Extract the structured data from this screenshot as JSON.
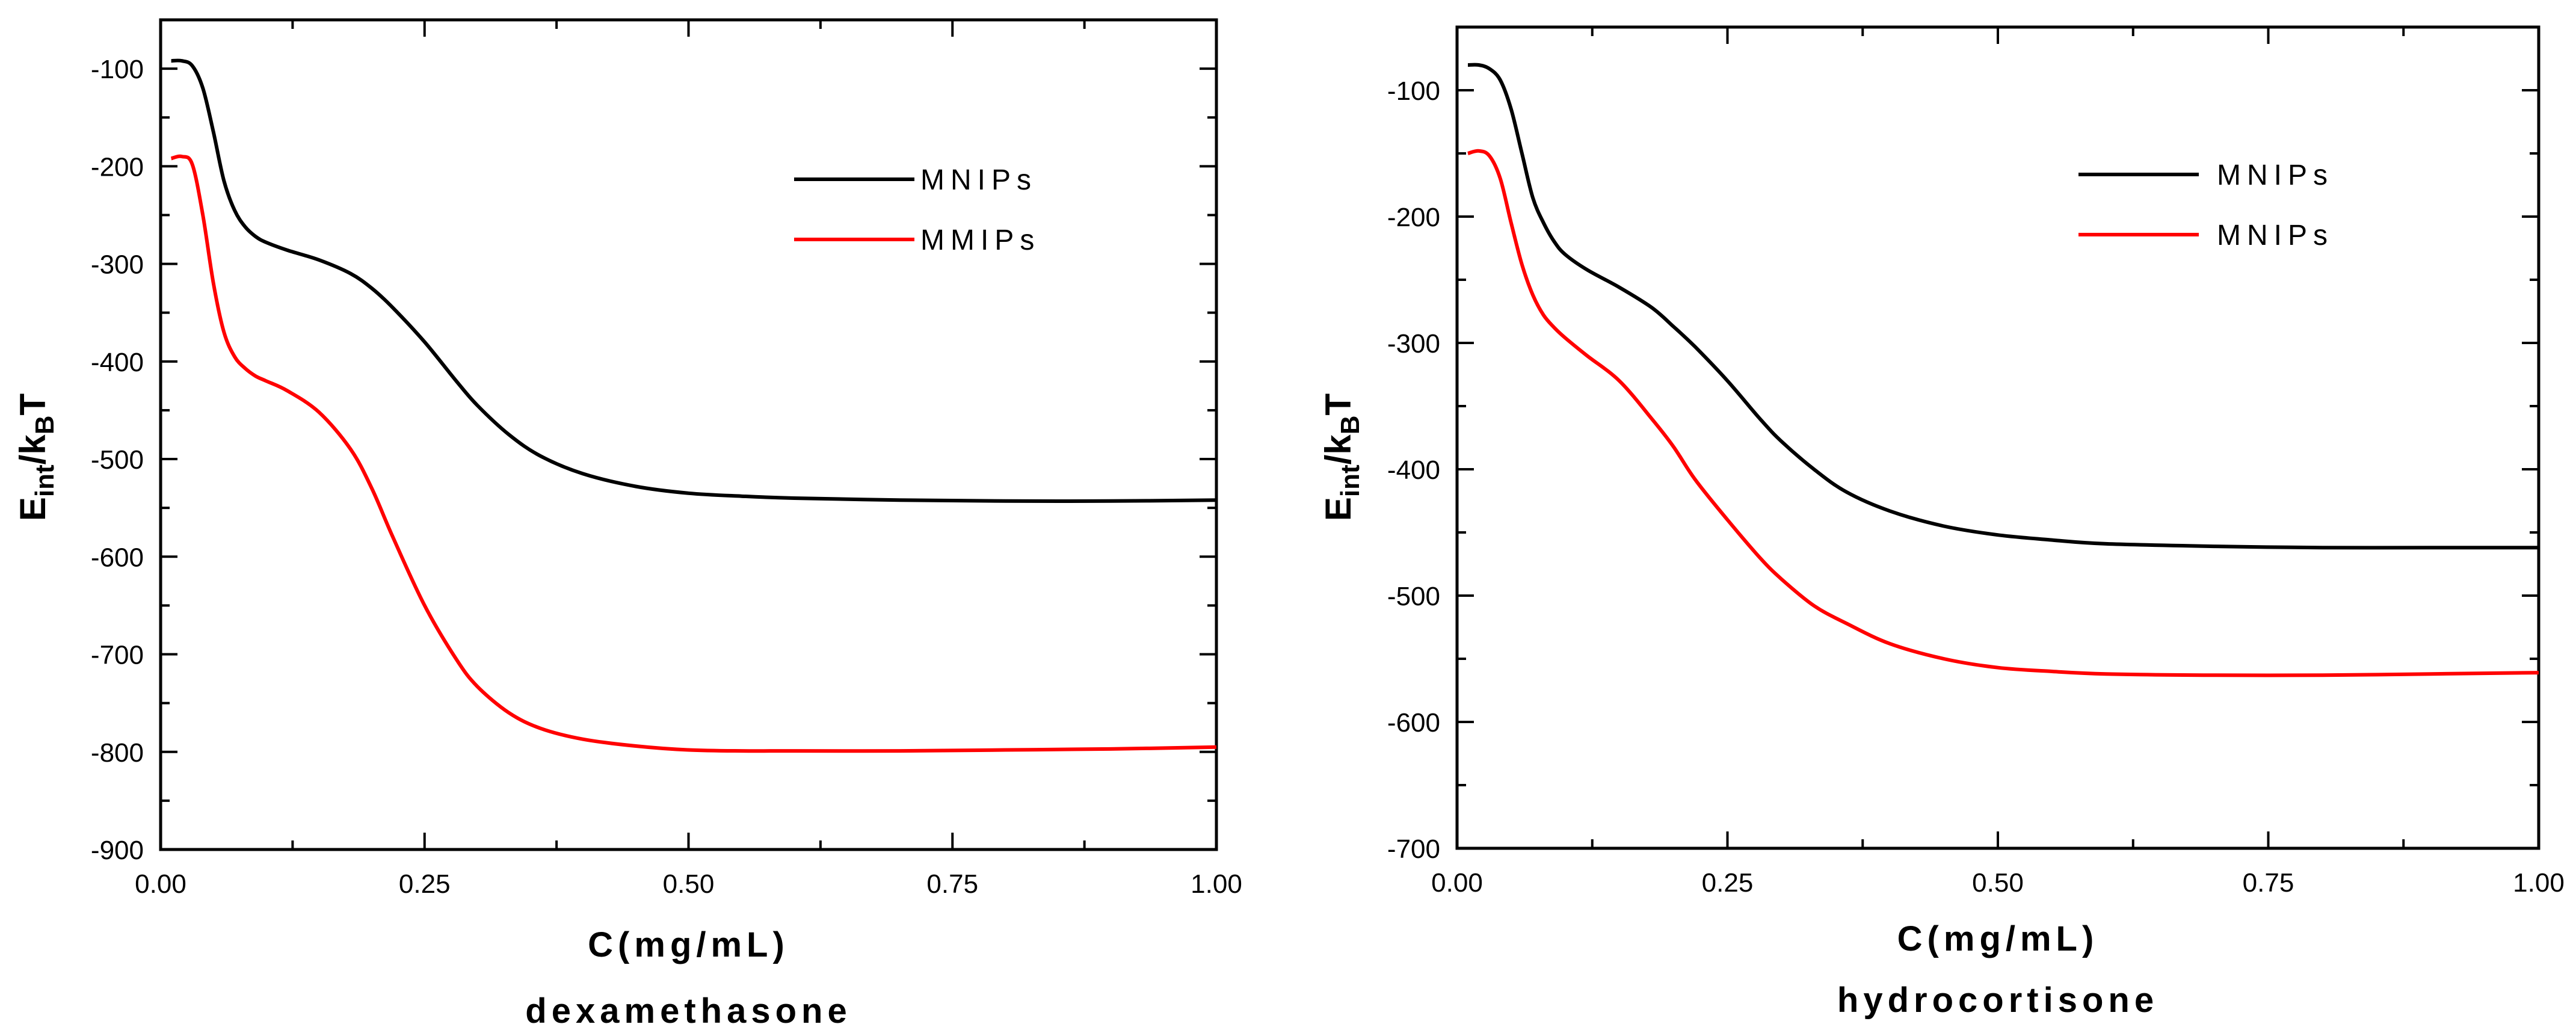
{
  "chart_data": [
    {
      "type": "line",
      "xlabel": "C(mg/mL)",
      "caption": "dexamethasone",
      "ylabel": {
        "main": "E",
        "sub": "int",
        "slash": "/k",
        "sub2": "B",
        "end": "T"
      },
      "xlim": [
        0,
        1.0
      ],
      "ylim": [
        -900,
        -50
      ],
      "xticks": [
        "0.00",
        "0.25",
        "0.50",
        "0.75",
        "1.00"
      ],
      "xtick_values": [
        0,
        0.25,
        0.5,
        0.75,
        1.0
      ],
      "yticks": [
        "-100",
        "-200",
        "-300",
        "-400",
        "-500",
        "-600",
        "-700",
        "-800",
        "-900"
      ],
      "ytick_values": [
        -100,
        -200,
        -300,
        -400,
        -500,
        -600,
        -700,
        -800,
        -900
      ],
      "legend_position": "top-right",
      "series": [
        {
          "name": "MNIPs",
          "color": "#000000",
          "x": [
            0.01,
            0.02,
            0.03,
            0.04,
            0.05,
            0.06,
            0.07,
            0.08,
            0.09,
            0.1,
            0.12,
            0.15,
            0.18,
            0.2,
            0.22,
            0.25,
            0.28,
            0.3,
            0.33,
            0.36,
            0.4,
            0.45,
            0.5,
            0.55,
            0.6,
            0.7,
            0.8,
            0.9,
            1.0
          ],
          "y": [
            -92,
            -92,
            -97,
            -120,
            -165,
            -215,
            -245,
            -262,
            -272,
            -278,
            -286,
            -296,
            -310,
            -325,
            -345,
            -380,
            -420,
            -445,
            -475,
            -497,
            -515,
            -528,
            -535,
            -538,
            -540,
            -542,
            -543,
            -543,
            -542
          ]
        },
        {
          "name": "MMIPs",
          "color": "#ff0000",
          "x": [
            0.01,
            0.02,
            0.03,
            0.04,
            0.05,
            0.06,
            0.07,
            0.08,
            0.09,
            0.1,
            0.12,
            0.15,
            0.18,
            0.2,
            0.22,
            0.25,
            0.28,
            0.3,
            0.33,
            0.36,
            0.4,
            0.45,
            0.5,
            0.55,
            0.6,
            0.7,
            0.8,
            0.9,
            1.0
          ],
          "y": [
            -192,
            -190,
            -198,
            -250,
            -320,
            -370,
            -395,
            -407,
            -415,
            -420,
            -430,
            -452,
            -490,
            -530,
            -580,
            -650,
            -705,
            -733,
            -760,
            -776,
            -787,
            -794,
            -798,
            -799,
            -799,
            -799,
            -798,
            -797,
            -795
          ]
        }
      ]
    },
    {
      "type": "line",
      "xlabel": "C(mg/mL)",
      "caption": "hydrocortisone",
      "ylabel": {
        "main": "E",
        "sub": "int",
        "slash": "/k",
        "sub2": "B",
        "end": "T"
      },
      "xlim": [
        0,
        1.0
      ],
      "ylim": [
        -700,
        -50
      ],
      "xticks": [
        "0.00",
        "0.25",
        "0.50",
        "0.75",
        "1.00"
      ],
      "xtick_values": [
        0,
        0.25,
        0.5,
        0.75,
        1.0
      ],
      "yticks": [
        "-100",
        "-200",
        "-300",
        "-400",
        "-500",
        "-600",
        "-700"
      ],
      "ytick_values": [
        -100,
        -200,
        -300,
        -400,
        -500,
        -600,
        -700
      ],
      "legend_position": "top-right",
      "series": [
        {
          "name": "MNIPs",
          "color": "#000000",
          "x": [
            0.01,
            0.02,
            0.03,
            0.04,
            0.05,
            0.06,
            0.07,
            0.08,
            0.09,
            0.1,
            0.12,
            0.15,
            0.18,
            0.2,
            0.22,
            0.25,
            0.28,
            0.3,
            0.33,
            0.36,
            0.4,
            0.45,
            0.5,
            0.55,
            0.6,
            0.7,
            0.8,
            0.9,
            1.0
          ],
          "y": [
            -80,
            -80,
            -83,
            -92,
            -115,
            -150,
            -185,
            -205,
            -220,
            -230,
            -242,
            -256,
            -272,
            -287,
            -303,
            -330,
            -360,
            -378,
            -400,
            -418,
            -433,
            -445,
            -452,
            -456,
            -459,
            -461,
            -462,
            -462,
            -462
          ]
        },
        {
          "name": "MNIPs",
          "color": "#ff0000",
          "x": [
            0.01,
            0.02,
            0.03,
            0.04,
            0.05,
            0.06,
            0.07,
            0.08,
            0.09,
            0.1,
            0.12,
            0.15,
            0.18,
            0.2,
            0.22,
            0.25,
            0.28,
            0.3,
            0.33,
            0.36,
            0.4,
            0.45,
            0.5,
            0.55,
            0.6,
            0.7,
            0.8,
            0.9,
            1.0
          ],
          "y": [
            -150,
            -148,
            -152,
            -170,
            -205,
            -238,
            -262,
            -278,
            -288,
            -296,
            -310,
            -330,
            -360,
            -382,
            -408,
            -440,
            -470,
            -487,
            -508,
            -522,
            -538,
            -550,
            -557,
            -560,
            -562,
            -563,
            -563,
            -562,
            -561
          ]
        }
      ]
    }
  ]
}
